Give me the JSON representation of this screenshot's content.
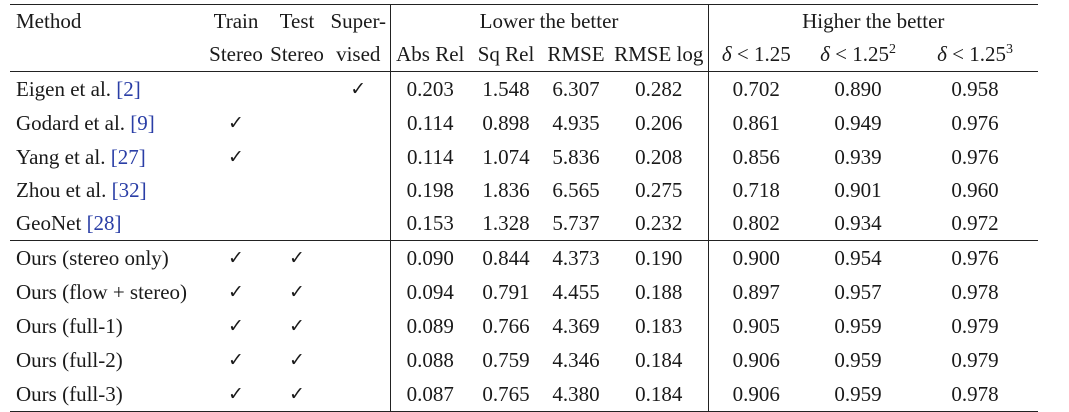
{
  "header": {
    "method": "Method",
    "train": [
      "Train",
      "Stereo"
    ],
    "test": [
      "Test",
      "Stereo"
    ],
    "supervised": [
      "Super-",
      "vised"
    ],
    "lower_group": "Lower the better",
    "higher_group": "Higher the better",
    "metrics": {
      "abs_rel": "Abs Rel",
      "sq_rel": "Sq Rel",
      "rmse": "RMSE",
      "rmse_log": "RMSE log",
      "delta_symbol": "δ",
      "delta_rel": "< 1.25",
      "delta_exp2": "2",
      "delta_exp3": "3"
    }
  },
  "check_mark": "✓",
  "rows": [
    {
      "method": "Eigen et al. ",
      "cite": "[2]",
      "train": false,
      "test": false,
      "sup": true,
      "vals": [
        "0.203",
        "1.548",
        "6.307",
        "0.282",
        "0.702",
        "0.890",
        "0.958"
      ],
      "bold": []
    },
    {
      "method": "Godard et al. ",
      "cite": "[9]",
      "train": true,
      "test": false,
      "sup": false,
      "vals": [
        "0.114",
        "0.898",
        "4.935",
        "0.206",
        "0.861",
        "0.949",
        "0.976"
      ],
      "bold": []
    },
    {
      "method": "Yang et al. ",
      "cite": "[27]",
      "train": true,
      "test": false,
      "sup": false,
      "vals": [
        "0.114",
        "1.074",
        "5.836",
        "0.208",
        "0.856",
        "0.939",
        "0.976"
      ],
      "bold": []
    },
    {
      "method": "Zhou et al. ",
      "cite": "[32]",
      "train": false,
      "test": false,
      "sup": false,
      "vals": [
        "0.198",
        "1.836",
        "6.565",
        "0.275",
        "0.718",
        "0.901",
        "0.960"
      ],
      "bold": []
    },
    {
      "method": "GeoNet ",
      "cite": "[28]",
      "train": false,
      "test": false,
      "sup": false,
      "vals": [
        "0.153",
        "1.328",
        "5.737",
        "0.232",
        "0.802",
        "0.934",
        "0.972"
      ],
      "bold": []
    },
    {
      "method": "Ours (stereo only)",
      "cite": "",
      "train": true,
      "test": true,
      "sup": false,
      "vals": [
        "0.090",
        "0.844",
        "4.373",
        "0.190",
        "0.900",
        "0.954",
        "0.976"
      ],
      "bold": []
    },
    {
      "method": "Ours (flow + stereo)",
      "cite": "",
      "train": true,
      "test": true,
      "sup": false,
      "vals": [
        "0.094",
        "0.791",
        "4.455",
        "0.188",
        "0.897",
        "0.957",
        "0.978"
      ],
      "bold": []
    },
    {
      "method": "Ours (full-1)",
      "cite": "",
      "train": true,
      "test": true,
      "sup": false,
      "vals": [
        "0.089",
        "0.766",
        "4.369",
        "0.183",
        "0.905",
        "0.959",
        "0.979"
      ],
      "bold": [
        3,
        5,
        6
      ]
    },
    {
      "method": "Ours (full-2)",
      "cite": "",
      "train": true,
      "test": true,
      "sup": false,
      "vals": [
        "0.088",
        "0.759",
        "4.346",
        "0.184",
        "0.906",
        "0.959",
        "0.979"
      ],
      "bold": [
        1,
        2,
        4,
        5,
        6
      ]
    },
    {
      "method": "Ours (full-3)",
      "cite": "",
      "train": true,
      "test": true,
      "sup": false,
      "vals": [
        "0.087",
        "0.765",
        "4.380",
        "0.184",
        "0.906",
        "0.959",
        "0.978"
      ],
      "bold": [
        0,
        4,
        5
      ]
    }
  ]
}
